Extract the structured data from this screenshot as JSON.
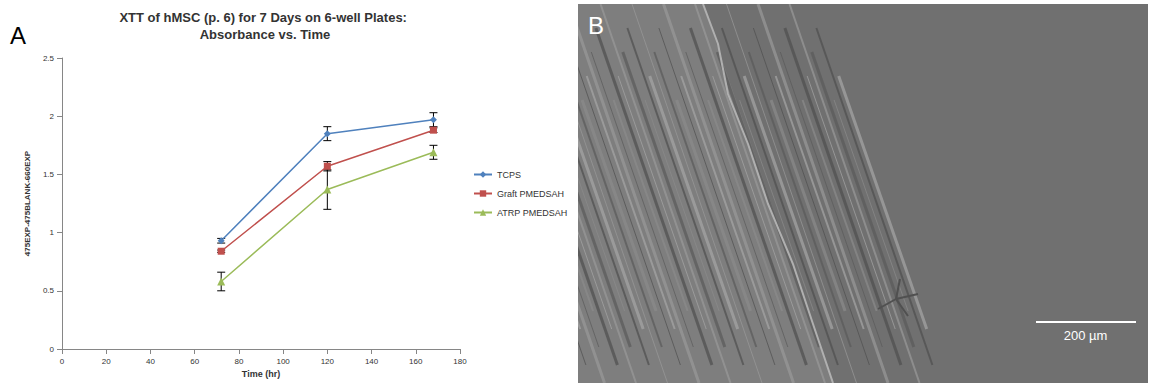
{
  "chart_data": {
    "type": "line",
    "title": "XTT of hMSC (p. 6) for 7 Days on 6-well Plates: Absorbance vs. Time",
    "panel_label": "A",
    "x_label": "Time (hr)",
    "y_label": "475EXP-475BLANK-660EXP",
    "x": [
      72,
      120,
      168
    ],
    "series": [
      {
        "name": "TCPS",
        "color": "#4f81bd",
        "marker": "diamond",
        "values": [
          0.93,
          1.85,
          1.97
        ],
        "errors": [
          0.02,
          0.06,
          0.06
        ]
      },
      {
        "name": "Graft PMEDSAH",
        "color": "#c0504d",
        "marker": "square",
        "values": [
          0.84,
          1.57,
          1.88
        ],
        "errors": [
          0.01,
          0.04,
          0.02
        ]
      },
      {
        "name": "ATRP PMEDSAH",
        "color": "#9bbb59",
        "marker": "triangle",
        "values": [
          0.58,
          1.37,
          1.69
        ],
        "errors": [
          0.08,
          0.17,
          0.06
        ]
      }
    ],
    "xlim": [
      0,
      180
    ],
    "xticks": [
      0,
      20,
      40,
      60,
      80,
      100,
      120,
      140,
      160,
      180
    ],
    "ylim": [
      0,
      2.5
    ],
    "yticks": [
      0,
      0.5,
      1,
      1.5,
      2,
      2.5
    ],
    "grid": false,
    "legend": "right"
  },
  "image_panel": {
    "panel_label": "B",
    "scale_bar_label": "200 µm"
  }
}
